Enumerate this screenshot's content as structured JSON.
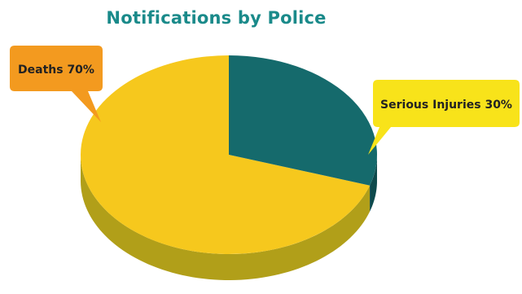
{
  "chart_data": {
    "type": "pie",
    "title": "Notifications by Police",
    "slices": [
      {
        "label": "Deaths",
        "value": 70,
        "display": "Deaths 70%",
        "color": "#f6c81d",
        "side": "#b19f19"
      },
      {
        "label": "Serious Injuries",
        "value": 30,
        "display": "Serious Injuries 30%",
        "color": "#156a6c",
        "side": "#0e4a4c"
      }
    ],
    "callouts": {
      "deaths_color": "#f39a1f",
      "injuries_color": "#f8e31a"
    },
    "title_color": "#1a8a8a"
  }
}
